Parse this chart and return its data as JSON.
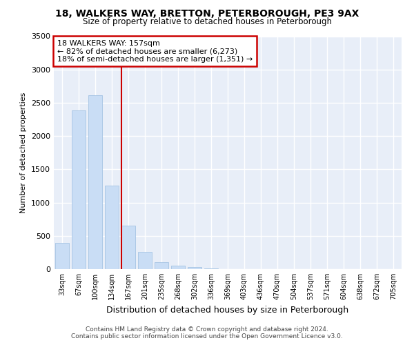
{
  "title_line1": "18, WALKERS WAY, BRETTON, PETERBOROUGH, PE3 9AX",
  "title_line2": "Size of property relative to detached houses in Peterborough",
  "xlabel": "Distribution of detached houses by size in Peterborough",
  "ylabel": "Number of detached properties",
  "bar_color": "#c9ddf5",
  "bar_edge_color": "#9bbde0",
  "categories": [
    "33sqm",
    "67sqm",
    "100sqm",
    "134sqm",
    "167sqm",
    "201sqm",
    "235sqm",
    "268sqm",
    "302sqm",
    "336sqm",
    "369sqm",
    "403sqm",
    "436sqm",
    "470sqm",
    "504sqm",
    "537sqm",
    "571sqm",
    "604sqm",
    "638sqm",
    "672sqm",
    "705sqm"
  ],
  "values": [
    390,
    2390,
    2610,
    1250,
    650,
    255,
    100,
    55,
    30,
    15,
    0,
    0,
    0,
    0,
    0,
    0,
    0,
    0,
    0,
    0,
    0
  ],
  "vline_index": 4,
  "annotation_title": "18 WALKERS WAY: 157sqm",
  "annotation_line1": "← 82% of detached houses are smaller (6,273)",
  "annotation_line2": "18% of semi-detached houses are larger (1,351) →",
  "vline_color": "#cc0000",
  "annotation_box_edgecolor": "#cc0000",
  "ylim": [
    0,
    3500
  ],
  "yticks": [
    0,
    500,
    1000,
    1500,
    2000,
    2500,
    3000,
    3500
  ],
  "background_color": "#e8eef8",
  "grid_color": "#ffffff",
  "footer_line1": "Contains HM Land Registry data © Crown copyright and database right 2024.",
  "footer_line2": "Contains public sector information licensed under the Open Government Licence v3.0."
}
